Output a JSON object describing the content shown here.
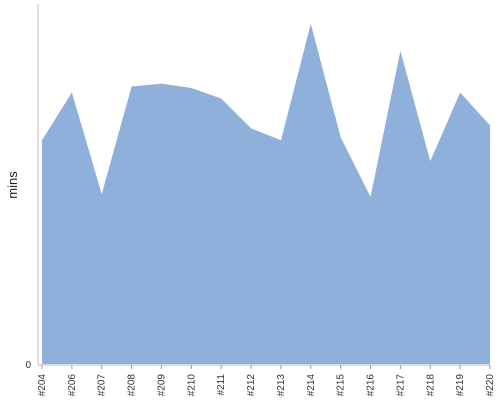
{
  "chart_data": {
    "type": "area",
    "categories": [
      "#204",
      "#206",
      "#207",
      "#208",
      "#209",
      "#210",
      "#211",
      "#212",
      "#213",
      "#214",
      "#215",
      "#216",
      "#217",
      "#218",
      "#219",
      "#220"
    ],
    "series": [
      {
        "values": [
          75,
          91,
          57,
          93,
          94,
          92.5,
          89,
          79,
          75,
          114,
          76,
          56,
          105,
          68,
          91,
          80
        ]
      }
    ],
    "title": "",
    "xlabel": "",
    "ylabel": "mins",
    "ylim": [
      0,
      120
    ],
    "y_ticks": [
      "0"
    ],
    "grid": false,
    "legend": "none",
    "colors": {
      "area_fill": "#8fb0db",
      "axis": "#bbbbbb",
      "tick": "#999999"
    }
  }
}
